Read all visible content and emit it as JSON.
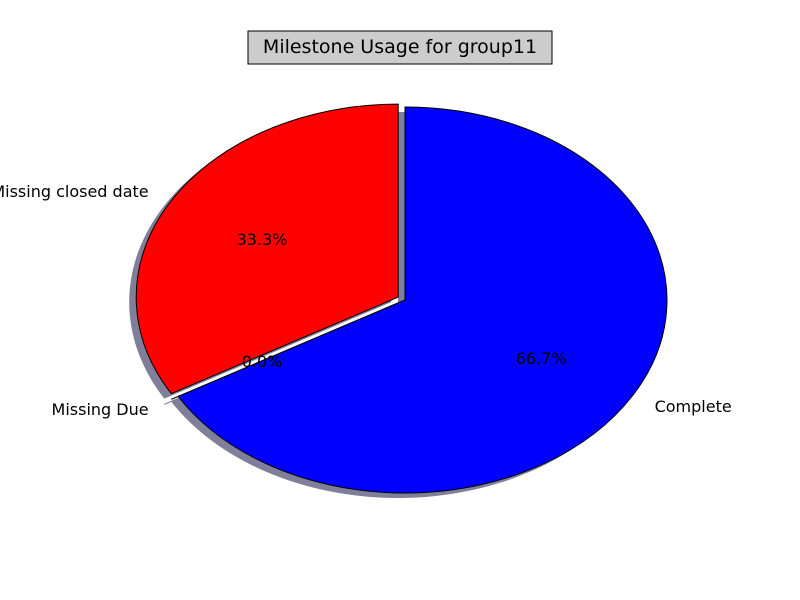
{
  "chart_data": {
    "type": "pie",
    "title": "Milestone Usage for group11",
    "slices": [
      {
        "label": "Missing closed date",
        "value": 1,
        "percent_label": "33.3%",
        "color": "#ff0000",
        "exploded": true
      },
      {
        "label": "Missing Due",
        "value": 0,
        "percent_label": "0.0%",
        "color": "#008000",
        "exploded": true
      },
      {
        "label": "Complete",
        "value": 2,
        "percent_label": "66.7%",
        "color": "#0000ff",
        "exploded": false
      }
    ],
    "start_angle_deg": 90,
    "shadow": true,
    "shadow_color": "#7f7f9a"
  }
}
